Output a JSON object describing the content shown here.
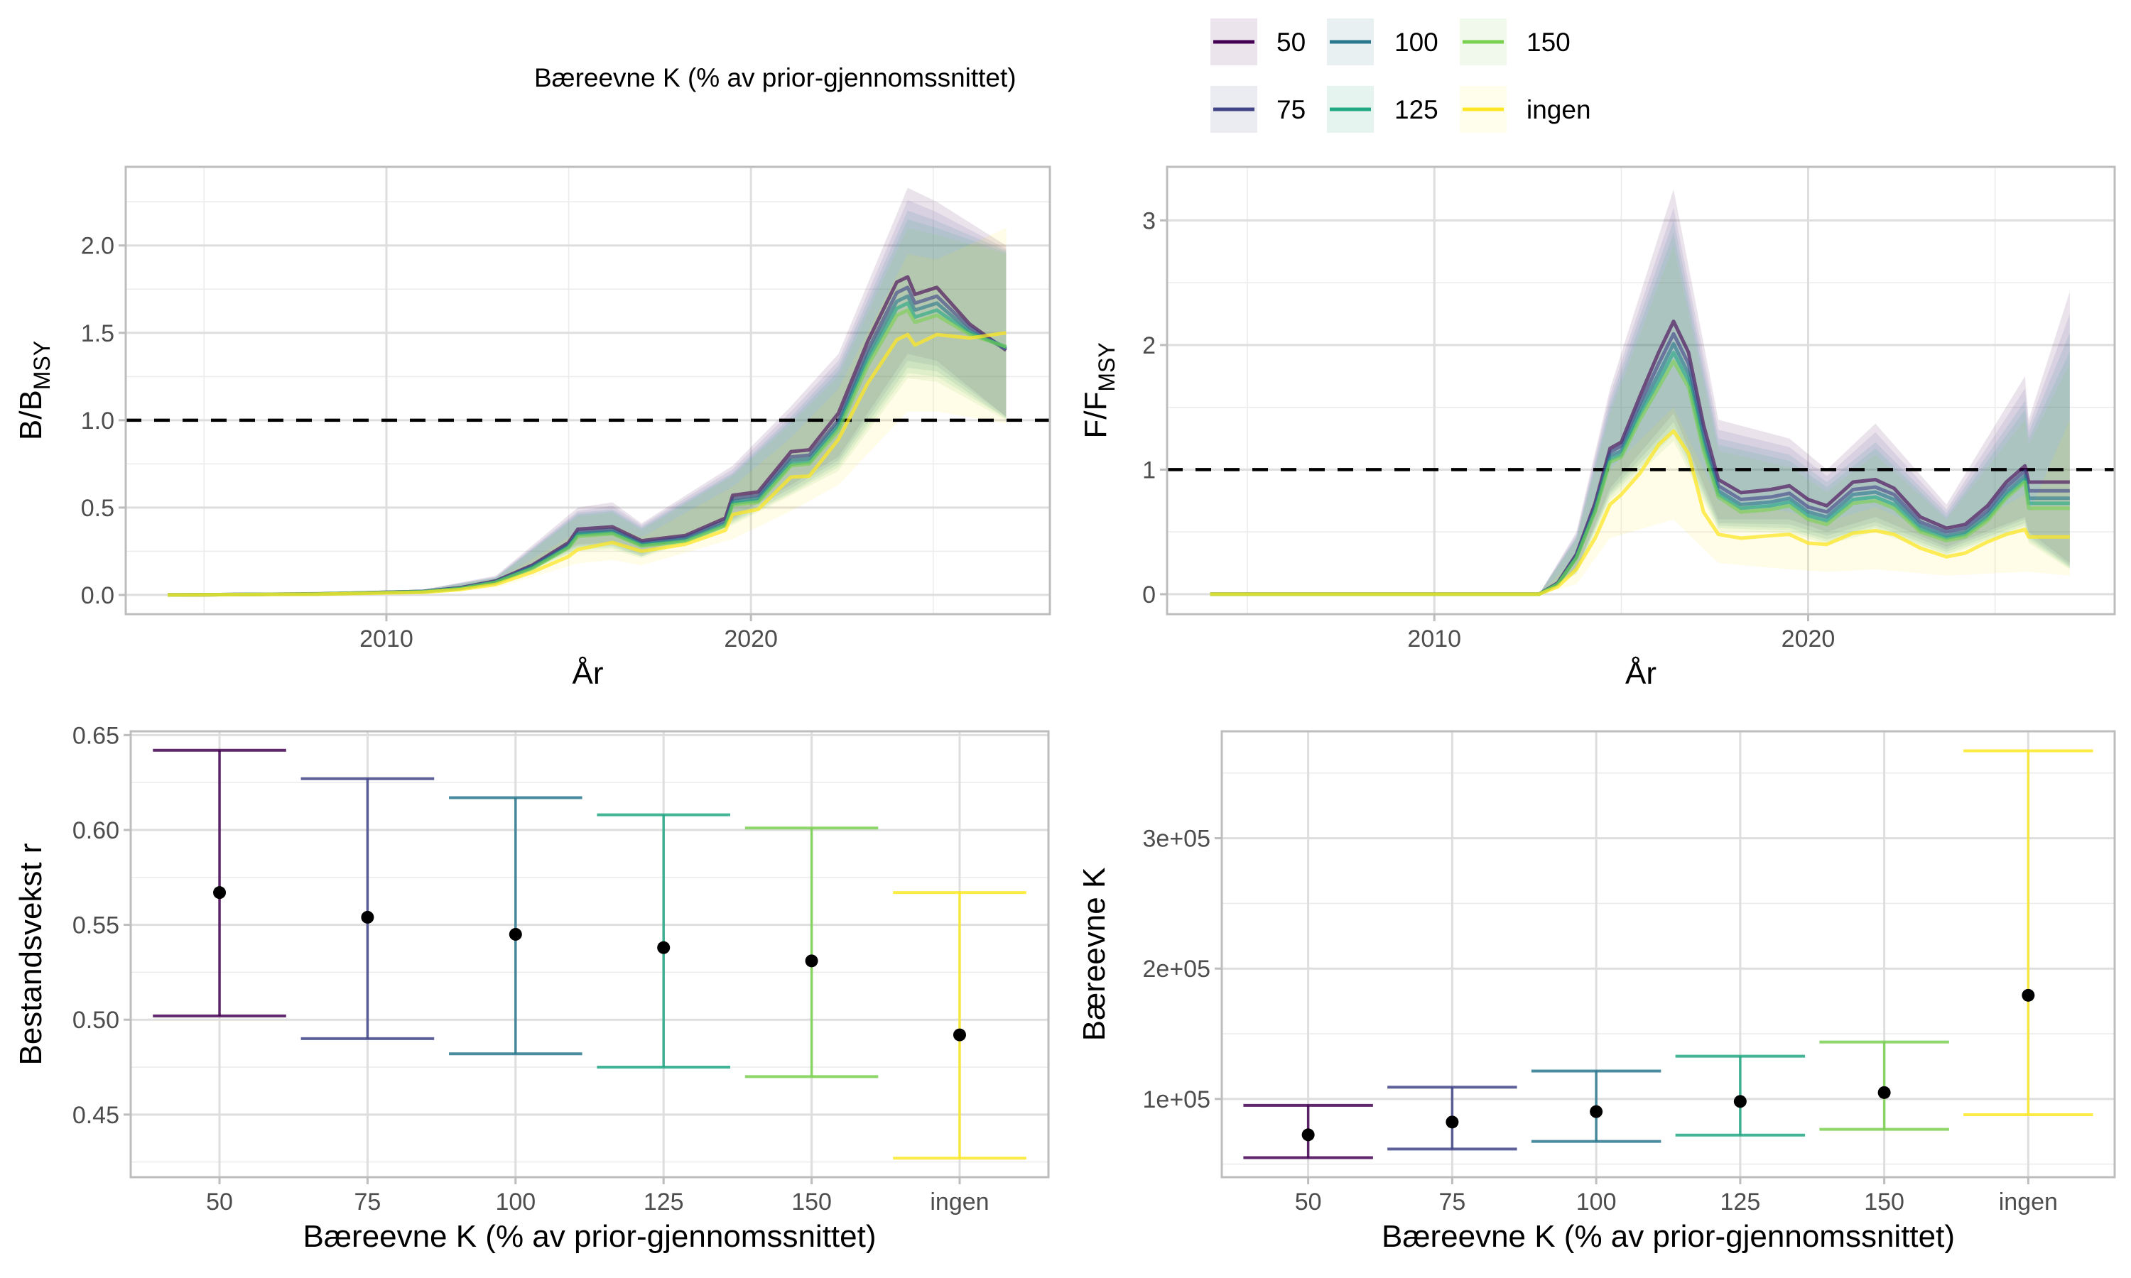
{
  "legend": {
    "title": "Bæreevne K (% av prior-gjennomssnittet)",
    "items": [
      {
        "label": "50",
        "color": "#440154"
      },
      {
        "label": "75",
        "color": "#414487"
      },
      {
        "label": "100",
        "color": "#2A788E"
      },
      {
        "label": "125",
        "color": "#22A884"
      },
      {
        "label": "150",
        "color": "#7AD151"
      },
      {
        "label": "ingen",
        "color": "#FDE725"
      }
    ]
  },
  "chart_data": [
    {
      "type": "line",
      "panel": "top-left",
      "xlabel": "År",
      "ylabel": {
        "main": "B/B",
        "sub": "MSY"
      },
      "xlim": [
        2002.85,
        2028.2
      ],
      "ylim": [
        -0.11,
        2.45
      ],
      "xticks": [
        "2010",
        "2020"
      ],
      "yticks": [
        "0.0",
        "0.5",
        "1.0",
        "1.5",
        "2.0"
      ],
      "reference_line": 1.0,
      "grid": true,
      "x": [
        2004,
        2008,
        2011,
        2012,
        2013,
        2014,
        2015,
        2015.25,
        2016.2,
        2017,
        2018.2,
        2019.3,
        2019.5,
        2020.2,
        2021.1,
        2021.6,
        2022.4,
        2023.2,
        2024,
        2024.3,
        2024.5,
        2025.1,
        2026,
        2027
      ],
      "series": [
        {
          "name": "50",
          "values": [
            0,
            0.005,
            0.02,
            0.04,
            0.08,
            0.17,
            0.3,
            0.376,
            0.39,
            0.31,
            0.34,
            0.44,
            0.57,
            0.59,
            0.82,
            0.83,
            1.04,
            1.45,
            1.79,
            1.82,
            1.72,
            1.76,
            1.55,
            1.4
          ]
        },
        {
          "name": "75",
          "values": [
            0,
            0.005,
            0.02,
            0.04,
            0.077,
            0.165,
            0.29,
            0.36,
            0.375,
            0.3,
            0.33,
            0.425,
            0.55,
            0.57,
            0.79,
            0.8,
            1.0,
            1.4,
            1.73,
            1.76,
            1.67,
            1.71,
            1.53,
            1.41
          ]
        },
        {
          "name": "100",
          "values": [
            0,
            0.005,
            0.02,
            0.037,
            0.075,
            0.16,
            0.28,
            0.35,
            0.365,
            0.29,
            0.32,
            0.41,
            0.535,
            0.555,
            0.77,
            0.78,
            0.98,
            1.37,
            1.68,
            1.71,
            1.63,
            1.67,
            1.51,
            1.41
          ]
        },
        {
          "name": "125",
          "values": [
            0,
            0.005,
            0.018,
            0.036,
            0.073,
            0.155,
            0.275,
            0.345,
            0.355,
            0.285,
            0.31,
            0.4,
            0.525,
            0.54,
            0.75,
            0.76,
            0.96,
            1.34,
            1.64,
            1.67,
            1.59,
            1.63,
            1.5,
            1.42
          ]
        },
        {
          "name": "150",
          "values": [
            0,
            0.005,
            0.018,
            0.035,
            0.072,
            0.15,
            0.27,
            0.335,
            0.35,
            0.28,
            0.305,
            0.395,
            0.515,
            0.53,
            0.74,
            0.75,
            0.94,
            1.31,
            1.6,
            1.63,
            1.56,
            1.6,
            1.49,
            1.42
          ]
        },
        {
          "name": "ingen",
          "values": [
            0,
            0.004,
            0.015,
            0.03,
            0.06,
            0.13,
            0.22,
            0.26,
            0.3,
            0.25,
            0.29,
            0.37,
            0.46,
            0.49,
            0.675,
            0.68,
            0.89,
            1.21,
            1.46,
            1.49,
            1.43,
            1.49,
            1.47,
            1.5
          ]
        }
      ],
      "ribbon_x": [
        2004,
        2011,
        2013,
        2015.25,
        2016.2,
        2017,
        2019.5,
        2021.1,
        2022.4,
        2024.3,
        2025.1,
        2027
      ],
      "ribbons": [
        {
          "name": "50",
          "lower": [
            0,
            0.015,
            0.06,
            0.29,
            0.3,
            0.24,
            0.44,
            0.63,
            0.79,
            1.38,
            1.34,
            1.02
          ],
          "upper": [
            0,
            0.03,
            0.11,
            0.5,
            0.53,
            0.41,
            0.74,
            1.08,
            1.38,
            2.33,
            2.25,
            2.0
          ]
        },
        {
          "name": "75",
          "lower": [
            0,
            0.015,
            0.058,
            0.28,
            0.29,
            0.23,
            0.43,
            0.61,
            0.77,
            1.34,
            1.31,
            1.02
          ],
          "upper": [
            0,
            0.03,
            0.105,
            0.48,
            0.51,
            0.4,
            0.72,
            1.05,
            1.34,
            2.26,
            2.19,
            1.98
          ]
        },
        {
          "name": "100",
          "lower": [
            0,
            0.014,
            0.056,
            0.27,
            0.28,
            0.22,
            0.42,
            0.59,
            0.75,
            1.3,
            1.28,
            1.01
          ],
          "upper": [
            0,
            0.03,
            0.1,
            0.47,
            0.49,
            0.39,
            0.7,
            1.02,
            1.31,
            2.2,
            2.14,
            1.97
          ]
        },
        {
          "name": "125",
          "lower": [
            0,
            0.014,
            0.055,
            0.26,
            0.27,
            0.22,
            0.41,
            0.58,
            0.73,
            1.27,
            1.25,
            1.01
          ],
          "upper": [
            0,
            0.028,
            0.098,
            0.46,
            0.48,
            0.38,
            0.69,
            1.0,
            1.28,
            2.15,
            2.1,
            1.96
          ]
        },
        {
          "name": "150",
          "lower": [
            0,
            0.013,
            0.054,
            0.25,
            0.26,
            0.21,
            0.4,
            0.57,
            0.71,
            1.24,
            1.22,
            1.0
          ],
          "upper": [
            0,
            0.027,
            0.096,
            0.45,
            0.47,
            0.37,
            0.68,
            0.98,
            1.25,
            2.1,
            2.06,
            1.95
          ]
        },
        {
          "name": "ingen",
          "lower": [
            0,
            0.01,
            0.04,
            0.18,
            0.2,
            0.17,
            0.32,
            0.48,
            0.63,
            1.05,
            1.05,
            0.98
          ],
          "upper": [
            0,
            0.02,
            0.085,
            0.36,
            0.4,
            0.33,
            0.62,
            0.9,
            1.18,
            1.95,
            1.92,
            2.1
          ]
        }
      ]
    },
    {
      "type": "line",
      "panel": "top-right",
      "xlabel": "År",
      "ylabel": {
        "main": "F/F",
        "sub": "MSY"
      },
      "xlim": [
        2002.85,
        2028.2
      ],
      "ylim": [
        -0.16,
        3.43
      ],
      "xticks": [
        "2010",
        "2020"
      ],
      "yticks": [
        "0",
        "1",
        "2",
        "3"
      ],
      "reference_line": 1,
      "grid": true,
      "x": [
        2004,
        2012.8,
        2013.3,
        2013.8,
        2014.3,
        2014.7,
        2015.0,
        2015.5,
        2016.0,
        2016.4,
        2016.8,
        2017.2,
        2017.6,
        2018.2,
        2019.0,
        2019.5,
        2020.0,
        2020.5,
        2021.2,
        2021.8,
        2022.3,
        2023.0,
        2023.7,
        2024.2,
        2024.8,
        2025.3,
        2025.8,
        2025.9,
        2027
      ],
      "series": [
        {
          "name": "50",
          "values": [
            0,
            0,
            0.09,
            0.32,
            0.73,
            1.17,
            1.22,
            1.59,
            1.94,
            2.19,
            1.94,
            1.36,
            0.92,
            0.815,
            0.84,
            0.87,
            0.76,
            0.71,
            0.9,
            0.92,
            0.85,
            0.62,
            0.53,
            0.56,
            0.71,
            0.9,
            1.03,
            0.9,
            0.9
          ]
        },
        {
          "name": "75",
          "values": [
            0,
            0,
            0.088,
            0.31,
            0.71,
            1.14,
            1.19,
            1.53,
            1.85,
            2.09,
            1.85,
            1.29,
            0.87,
            0.76,
            0.78,
            0.81,
            0.7,
            0.66,
            0.84,
            0.86,
            0.8,
            0.58,
            0.5,
            0.53,
            0.67,
            0.86,
            0.99,
            0.83,
            0.83
          ]
        },
        {
          "name": "100",
          "values": [
            0,
            0,
            0.085,
            0.3,
            0.69,
            1.11,
            1.15,
            1.48,
            1.77,
            2.01,
            1.77,
            1.23,
            0.83,
            0.72,
            0.74,
            0.77,
            0.66,
            0.62,
            0.8,
            0.82,
            0.76,
            0.55,
            0.47,
            0.5,
            0.64,
            0.82,
            0.95,
            0.77,
            0.77
          ]
        },
        {
          "name": "125",
          "values": [
            0,
            0,
            0.082,
            0.295,
            0.67,
            1.08,
            1.12,
            1.44,
            1.71,
            1.94,
            1.71,
            1.19,
            0.8,
            0.69,
            0.71,
            0.74,
            0.63,
            0.59,
            0.76,
            0.78,
            0.72,
            0.52,
            0.45,
            0.48,
            0.61,
            0.79,
            0.92,
            0.73,
            0.73
          ]
        },
        {
          "name": "150",
          "values": [
            0,
            0,
            0.08,
            0.29,
            0.66,
            1.06,
            1.1,
            1.4,
            1.66,
            1.87,
            1.66,
            1.15,
            0.78,
            0.66,
            0.68,
            0.71,
            0.6,
            0.56,
            0.73,
            0.75,
            0.69,
            0.5,
            0.43,
            0.46,
            0.59,
            0.77,
            0.9,
            0.69,
            0.69
          ]
        },
        {
          "name": "ingen",
          "values": [
            0,
            0,
            0.06,
            0.2,
            0.45,
            0.72,
            0.8,
            0.97,
            1.2,
            1.31,
            1.13,
            0.66,
            0.48,
            0.45,
            0.47,
            0.48,
            0.41,
            0.4,
            0.49,
            0.51,
            0.48,
            0.37,
            0.3,
            0.33,
            0.42,
            0.48,
            0.52,
            0.46,
            0.46
          ]
        }
      ],
      "ribbon_x": [
        2004,
        2012.8,
        2013.8,
        2014.7,
        2016.4,
        2017.6,
        2019.5,
        2020.5,
        2021.8,
        2023.7,
        2025.8,
        2025.9,
        2027
      ],
      "ribbons": [
        {
          "name": "50",
          "lower": [
            0,
            0,
            0.2,
            0.85,
            1.45,
            0.6,
            0.6,
            0.5,
            0.62,
            0.38,
            0.62,
            0.5,
            0.25
          ],
          "upper": [
            0,
            0,
            0.5,
            1.65,
            3.25,
            1.4,
            1.25,
            1.0,
            1.37,
            0.72,
            1.75,
            1.4,
            2.43
          ]
        },
        {
          "name": "75",
          "lower": [
            0,
            0,
            0.19,
            0.82,
            1.38,
            0.57,
            0.56,
            0.47,
            0.58,
            0.36,
            0.6,
            0.47,
            0.23
          ],
          "upper": [
            0,
            0,
            0.48,
            1.6,
            3.1,
            1.32,
            1.18,
            0.95,
            1.3,
            0.68,
            1.65,
            1.35,
            2.25
          ]
        },
        {
          "name": "100",
          "lower": [
            0,
            0,
            0.18,
            0.8,
            1.33,
            0.55,
            0.53,
            0.44,
            0.55,
            0.34,
            0.57,
            0.45,
            0.22
          ],
          "upper": [
            0,
            0,
            0.46,
            1.55,
            3.0,
            1.25,
            1.12,
            0.9,
            1.22,
            0.65,
            1.55,
            1.3,
            2.1
          ]
        },
        {
          "name": "125",
          "lower": [
            0,
            0,
            0.17,
            0.78,
            1.28,
            0.53,
            0.51,
            0.42,
            0.53,
            0.32,
            0.55,
            0.43,
            0.21
          ],
          "upper": [
            0,
            0,
            0.45,
            1.5,
            2.9,
            1.2,
            1.07,
            0.86,
            1.17,
            0.62,
            1.48,
            1.25,
            1.95
          ]
        },
        {
          "name": "150",
          "lower": [
            0,
            0,
            0.16,
            0.75,
            1.23,
            0.51,
            0.49,
            0.4,
            0.5,
            0.31,
            0.52,
            0.41,
            0.2
          ],
          "upper": [
            0,
            0,
            0.44,
            1.45,
            2.8,
            1.15,
            1.02,
            0.82,
            1.12,
            0.6,
            1.4,
            1.2,
            1.85
          ]
        },
        {
          "name": "ingen",
          "lower": [
            0,
            0,
            0.08,
            0.45,
            0.6,
            0.25,
            0.2,
            0.18,
            0.2,
            0.15,
            0.18,
            0.18,
            0.15
          ],
          "upper": [
            0,
            0,
            0.3,
            1.0,
            1.5,
            0.75,
            0.66,
            0.58,
            0.7,
            0.45,
            0.8,
            0.65,
            1.4
          ]
        }
      ]
    },
    {
      "type": "errorbar",
      "panel": "bottom-left",
      "xlabel": "Bæreevne K (% av prior-gjennomssnittet)",
      "ylabel": "Bestandsvekst r",
      "categories": [
        "50",
        "75",
        "100",
        "125",
        "150",
        "ingen"
      ],
      "ylim": [
        0.417,
        0.652
      ],
      "yticks": [
        "0.45",
        "0.50",
        "0.55",
        "0.60",
        "0.65"
      ],
      "grid": true,
      "values": [
        0.567,
        0.554,
        0.545,
        0.538,
        0.531,
        0.492
      ],
      "lower": [
        0.502,
        0.49,
        0.482,
        0.475,
        0.47,
        0.427
      ],
      "upper": [
        0.642,
        0.627,
        0.617,
        0.608,
        0.601,
        0.567
      ]
    },
    {
      "type": "errorbar",
      "panel": "bottom-right",
      "xlabel": "Bæreevne K (% av prior-gjennomssnittet)",
      "ylabel": "Bæreevne K",
      "categories": [
        "50",
        "75",
        "100",
        "125",
        "150",
        "ingen"
      ],
      "ylim": [
        40000,
        382000
      ],
      "yticks": [
        "1e+05",
        "2e+05",
        "3e+05"
      ],
      "grid": true,
      "values": [
        72500,
        82300,
        90300,
        98100,
        104900,
        179500
      ],
      "lower": [
        55000,
        61600,
        67400,
        72300,
        76700,
        87900
      ],
      "upper": [
        95100,
        109000,
        121400,
        132800,
        143700,
        367000
      ]
    }
  ]
}
